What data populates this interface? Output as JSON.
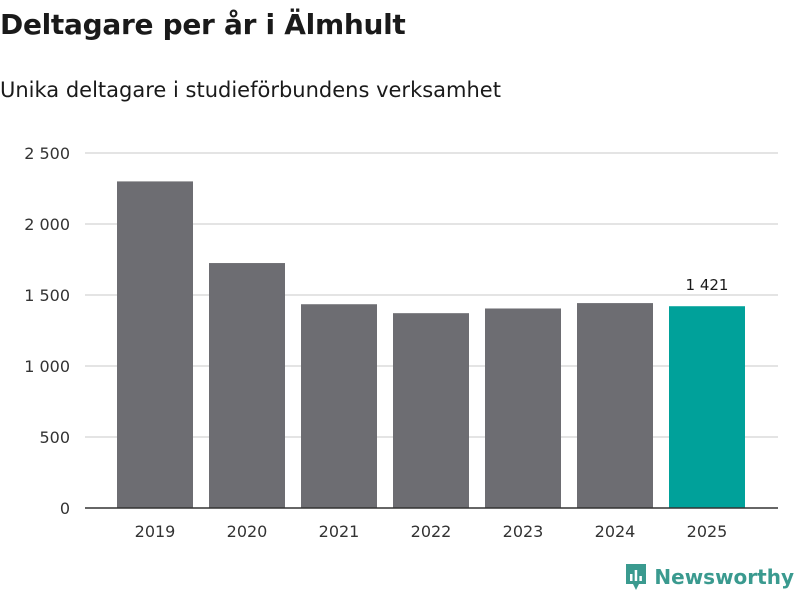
{
  "title": "Deltagare per år i Älmhult",
  "subtitle": "Unika deltagare i studieförbundens verksamhet",
  "brand": "Newsworthy",
  "colors": {
    "bar": "#6d6d72",
    "highlight": "#00a19a",
    "grid": "#dcdcdc",
    "axis": "#333333"
  },
  "chart_data": {
    "type": "bar",
    "title": "Deltagare per år i Älmhult",
    "subtitle": "Unika deltagare i studieförbundens verksamhet",
    "categories": [
      "2019",
      "2020",
      "2021",
      "2022",
      "2023",
      "2024",
      "2025"
    ],
    "values": [
      2300,
      1725,
      1435,
      1372,
      1405,
      1443,
      1421
    ],
    "highlight_index": 6,
    "data_labels": [
      {
        "index": 6,
        "text": "1 421"
      }
    ],
    "ylim": [
      0,
      2500
    ],
    "yticks": [
      0,
      500,
      1000,
      1500,
      2000,
      2500
    ],
    "ytick_labels": [
      "0",
      "500",
      "1 000",
      "1 500",
      "2 000",
      "2 500"
    ],
    "xlabel": "",
    "ylabel": "",
    "grid": true
  }
}
